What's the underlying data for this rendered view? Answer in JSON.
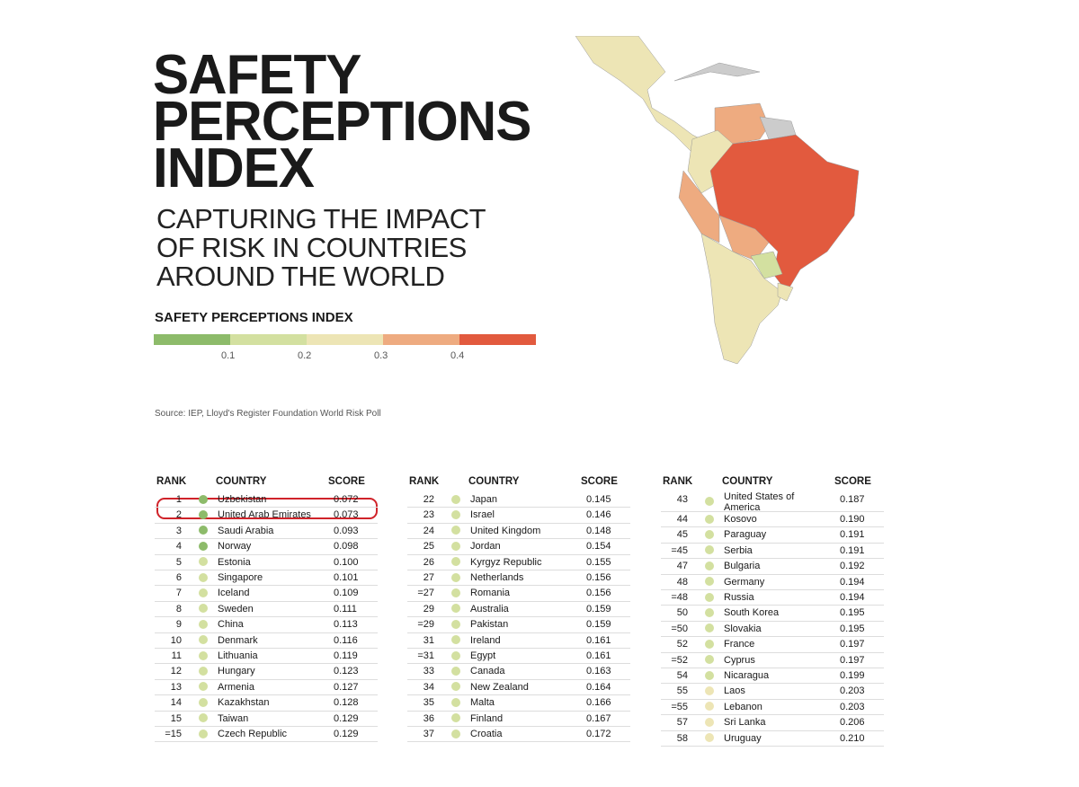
{
  "header": {
    "title": [
      "SAFETY",
      "PERCEPTIONS",
      "INDEX"
    ],
    "subtitle": [
      "CAPTURING THE IMPACT",
      "OF RISK IN COUNTRIES",
      "AROUND THE WORLD"
    ]
  },
  "legend": {
    "title": "SAFETY PERCEPTIONS INDEX",
    "colors": [
      "#8dbb6a",
      "#d3e0a0",
      "#ede5b5",
      "#eeab80",
      "#e25a3e"
    ],
    "ticks": [
      "0.1",
      "0.2",
      "0.3",
      "0.4"
    ]
  },
  "source": "Source: IEP, Lloyd's Register Foundation World Risk Poll",
  "tables": [
    {
      "columns": [
        "RANK",
        "COUNTRY",
        "SCORE"
      ],
      "rows": [
        [
          "1",
          "Uzbekistan",
          "0.072"
        ],
        [
          "2",
          "United Arab Emirates",
          "0.073"
        ],
        [
          "3",
          "Saudi Arabia",
          "0.093"
        ],
        [
          "4",
          "Norway",
          "0.098"
        ],
        [
          "5",
          "Estonia",
          "0.100"
        ],
        [
          "6",
          "Singapore",
          "0.101"
        ],
        [
          "7",
          "Iceland",
          "0.109"
        ],
        [
          "8",
          "Sweden",
          "0.111"
        ],
        [
          "9",
          "China",
          "0.113"
        ],
        [
          "10",
          "Denmark",
          "0.116"
        ],
        [
          "11",
          "Lithuania",
          "0.119"
        ],
        [
          "12",
          "Hungary",
          "0.123"
        ],
        [
          "13",
          "Armenia",
          "0.127"
        ],
        [
          "14",
          "Kazakhstan",
          "0.128"
        ],
        [
          "15",
          "Taiwan",
          "0.129"
        ],
        [
          "=15",
          "Czech Republic",
          "0.129"
        ]
      ]
    },
    {
      "columns": [
        "RANK",
        "COUNTRY",
        "SCORE"
      ],
      "rows": [
        [
          "22",
          "Japan",
          "0.145"
        ],
        [
          "23",
          "Israel",
          "0.146"
        ],
        [
          "24",
          "United Kingdom",
          "0.148"
        ],
        [
          "25",
          "Jordan",
          "0.154"
        ],
        [
          "26",
          "Kyrgyz Republic",
          "0.155"
        ],
        [
          "27",
          "Netherlands",
          "0.156"
        ],
        [
          "=27",
          "Romania",
          "0.156"
        ],
        [
          "29",
          "Australia",
          "0.159"
        ],
        [
          "=29",
          "Pakistan",
          "0.159"
        ],
        [
          "31",
          "Ireland",
          "0.161"
        ],
        [
          "=31",
          "Egypt",
          "0.161"
        ],
        [
          "33",
          "Canada",
          "0.163"
        ],
        [
          "34",
          "New Zealand",
          "0.164"
        ],
        [
          "35",
          "Malta",
          "0.166"
        ],
        [
          "36",
          "Finland",
          "0.167"
        ],
        [
          "37",
          "Croatia",
          "0.172"
        ]
      ]
    },
    {
      "columns": [
        "RANK",
        "COUNTRY",
        "SCORE"
      ],
      "rows": [
        [
          "43",
          "United States of America",
          "0.187"
        ],
        [
          "44",
          "Kosovo",
          "0.190"
        ],
        [
          "45",
          "Paraguay",
          "0.191"
        ],
        [
          "=45",
          "Serbia",
          "0.191"
        ],
        [
          "47",
          "Bulgaria",
          "0.192"
        ],
        [
          "48",
          "Germany",
          "0.194"
        ],
        [
          "=48",
          "Russia",
          "0.194"
        ],
        [
          "50",
          "South Korea",
          "0.195"
        ],
        [
          "=50",
          "Slovakia",
          "0.195"
        ],
        [
          "52",
          "France",
          "0.197"
        ],
        [
          "=52",
          "Cyprus",
          "0.197"
        ],
        [
          "54",
          "Nicaragua",
          "0.199"
        ],
        [
          "55",
          "Laos",
          "0.203"
        ],
        [
          "=55",
          "Lebanon",
          "0.203"
        ],
        [
          "57",
          "Sri Lanka",
          "0.206"
        ],
        [
          "58",
          "Uruguay",
          "0.210"
        ]
      ]
    }
  ]
}
